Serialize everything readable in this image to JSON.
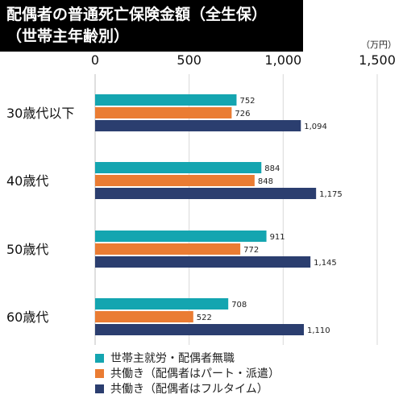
{
  "title_lines": [
    "配偶者の普通死亡保険金額（全生保）",
    "（世帯主年齢別）"
  ],
  "unit": "（万円）",
  "chart_data": {
    "type": "bar",
    "orientation": "horizontal",
    "title": "配偶者の普通死亡保険金額（全生保）（世帯主年齢別）",
    "unit": "（万円）",
    "categories": [
      "30歳代以下",
      "40歳代",
      "50歳代",
      "60歳代"
    ],
    "series": [
      {
        "name": "世帯主就労・配偶者無職",
        "color": "#14a5b0",
        "values": [
          752,
          884,
          911,
          708
        ],
        "labels": [
          "752",
          "884",
          "911",
          "708"
        ]
      },
      {
        "name": "共働き（配偶者はパート・派遣）",
        "color": "#ea7c33",
        "values": [
          726,
          848,
          772,
          522
        ],
        "labels": [
          "726",
          "848",
          "772",
          "522"
        ]
      },
      {
        "name": "共働き（配偶者はフルタイム）",
        "color": "#2b3e6f",
        "values": [
          1094,
          1175,
          1145,
          1110
        ],
        "labels": [
          "1,094",
          "1,175",
          "1,145",
          "1,110"
        ]
      }
    ],
    "xlim": [
      0,
      1500
    ],
    "ticks": [
      0,
      500,
      1000,
      1500
    ],
    "tick_labels": [
      "0",
      "500",
      "1,000",
      "1,500"
    ],
    "grid": true,
    "legend_position": "bottom"
  }
}
